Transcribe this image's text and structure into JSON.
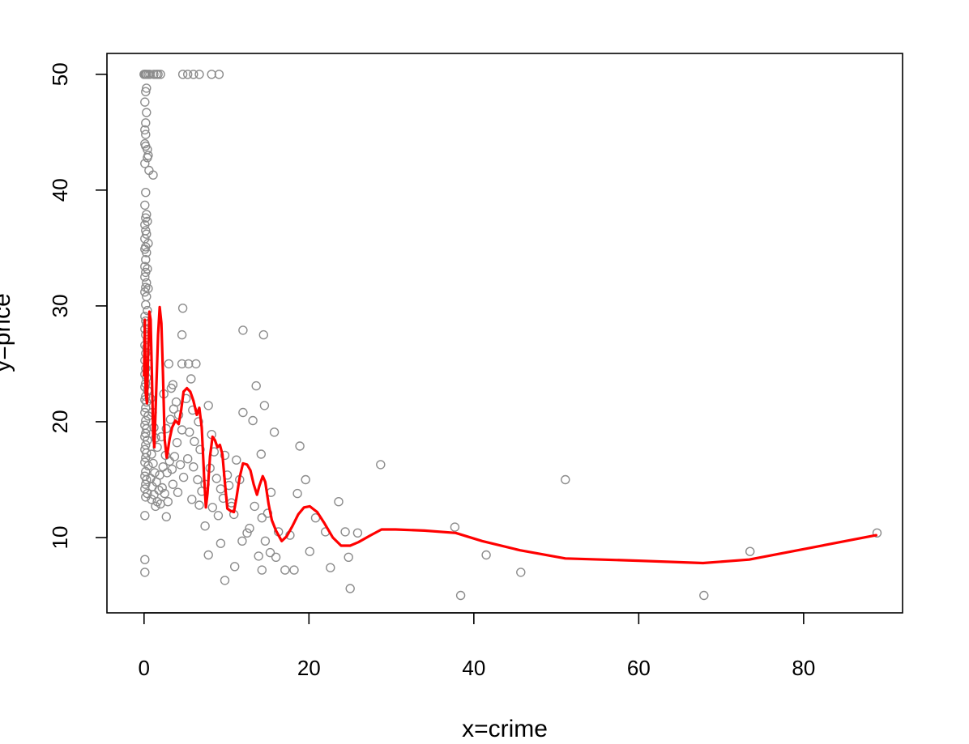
{
  "chart_data": {
    "type": "scatter",
    "xlabel": "x=crime",
    "ylabel": "y=price",
    "xlim": [
      -4.5,
      92
    ],
    "ylim": [
      3.5,
      51.8
    ],
    "x_ticks": [
      0,
      20,
      40,
      60,
      80
    ],
    "y_ticks": [
      10,
      20,
      30,
      40,
      50
    ],
    "grid": false,
    "colors": {
      "points": "#8c8c8c",
      "smooth_line": "#ff0000",
      "axes": "#000000"
    },
    "series": [
      {
        "kind": "points",
        "points": [
          [
            0.0,
            50.0
          ],
          [
            0.1,
            50.0
          ],
          [
            0.2,
            50.0
          ],
          [
            0.3,
            50.0
          ],
          [
            0.5,
            50.0
          ],
          [
            0.7,
            50.0
          ],
          [
            1.2,
            50.0
          ],
          [
            1.5,
            50.0
          ],
          [
            1.7,
            50.0
          ],
          [
            2.0,
            50.0
          ],
          [
            4.7,
            50.0
          ],
          [
            5.3,
            50.0
          ],
          [
            6.0,
            50.0
          ],
          [
            6.7,
            50.0
          ],
          [
            8.2,
            50.0
          ],
          [
            9.1,
            50.0
          ],
          [
            0.3,
            48.8
          ],
          [
            0.2,
            48.5
          ],
          [
            0.1,
            47.6
          ],
          [
            0.3,
            46.7
          ],
          [
            0.2,
            45.8
          ],
          [
            0.1,
            45.2
          ],
          [
            0.2,
            44.8
          ],
          [
            0.1,
            44.0
          ],
          [
            0.2,
            43.8
          ],
          [
            0.4,
            43.5
          ],
          [
            0.5,
            43.0
          ],
          [
            0.4,
            42.8
          ],
          [
            0.1,
            42.3
          ],
          [
            0.6,
            41.7
          ],
          [
            1.1,
            41.3
          ],
          [
            0.2,
            39.8
          ],
          [
            0.1,
            38.7
          ],
          [
            0.3,
            37.9
          ],
          [
            0.2,
            37.6
          ],
          [
            0.4,
            37.3
          ],
          [
            0.1,
            37.0
          ],
          [
            0.2,
            36.5
          ],
          [
            0.3,
            36.2
          ],
          [
            0.1,
            35.8
          ],
          [
            0.5,
            35.4
          ],
          [
            0.2,
            35.1
          ],
          [
            0.1,
            34.9
          ],
          [
            0.3,
            34.6
          ],
          [
            0.2,
            34.0
          ],
          [
            0.1,
            33.4
          ],
          [
            0.4,
            33.2
          ],
          [
            0.2,
            32.9
          ],
          [
            0.1,
            32.5
          ],
          [
            0.3,
            32.0
          ],
          [
            0.2,
            31.6
          ],
          [
            0.5,
            31.5
          ],
          [
            0.1,
            31.2
          ],
          [
            0.3,
            30.8
          ],
          [
            0.2,
            30.1
          ],
          [
            0.4,
            29.6
          ],
          [
            0.1,
            29.1
          ],
          [
            0.2,
            28.7
          ],
          [
            0.3,
            28.4
          ],
          [
            0.1,
            28.0
          ],
          [
            0.2,
            27.5
          ],
          [
            0.4,
            27.1
          ],
          [
            0.1,
            26.6
          ],
          [
            0.3,
            26.4
          ],
          [
            0.2,
            25.9
          ],
          [
            0.1,
            25.3
          ],
          [
            0.5,
            25.0
          ],
          [
            0.2,
            24.6
          ],
          [
            0.1,
            24.1
          ],
          [
            0.3,
            23.8
          ],
          [
            0.2,
            23.3
          ],
          [
            0.1,
            23.0
          ],
          [
            0.4,
            22.7
          ],
          [
            0.2,
            22.2
          ],
          [
            0.1,
            21.9
          ],
          [
            0.3,
            21.7
          ],
          [
            0.2,
            21.2
          ],
          [
            0.1,
            20.8
          ],
          [
            0.5,
            20.5
          ],
          [
            0.2,
            20.1
          ],
          [
            0.1,
            19.7
          ],
          [
            0.3,
            19.4
          ],
          [
            0.2,
            19.0
          ],
          [
            0.1,
            18.7
          ],
          [
            0.4,
            18.4
          ],
          [
            0.2,
            18.0
          ],
          [
            0.1,
            17.6
          ],
          [
            0.3,
            17.3
          ],
          [
            0.2,
            16.9
          ],
          [
            0.1,
            16.5
          ],
          [
            0.5,
            16.2
          ],
          [
            0.2,
            15.7
          ],
          [
            0.1,
            15.3
          ],
          [
            0.3,
            15.0
          ],
          [
            0.2,
            14.6
          ],
          [
            0.1,
            14.2
          ],
          [
            0.4,
            13.8
          ],
          [
            0.2,
            13.5
          ],
          [
            0.1,
            11.9
          ],
          [
            0.1,
            8.1
          ],
          [
            0.1,
            7.0
          ],
          [
            0.8,
            22.0
          ],
          [
            1.0,
            20.8
          ],
          [
            1.2,
            19.5
          ],
          [
            1.4,
            18.6
          ],
          [
            1.6,
            17.8
          ],
          [
            0.9,
            17.2
          ],
          [
            1.1,
            16.4
          ],
          [
            1.3,
            15.6
          ],
          [
            0.8,
            15.1
          ],
          [
            1.5,
            14.8
          ],
          [
            1.0,
            14.4
          ],
          [
            1.8,
            14.1
          ],
          [
            1.2,
            13.7
          ],
          [
            0.9,
            13.3
          ],
          [
            1.6,
            13.1
          ],
          [
            2.0,
            12.9
          ],
          [
            1.4,
            12.7
          ],
          [
            2.2,
            14.3
          ],
          [
            2.5,
            13.8
          ],
          [
            1.9,
            15.4
          ],
          [
            2.3,
            16.1
          ],
          [
            2.8,
            15.6
          ],
          [
            2.6,
            17.1
          ],
          [
            3.1,
            16.6
          ],
          [
            3.4,
            15.9
          ],
          [
            2.1,
            18.7
          ],
          [
            2.7,
            19.4
          ],
          [
            3.2,
            20.2
          ],
          [
            3.6,
            21.1
          ],
          [
            2.4,
            22.4
          ],
          [
            3.3,
            22.9
          ],
          [
            3.9,
            21.7
          ],
          [
            4.2,
            20.6
          ],
          [
            4.6,
            19.3
          ],
          [
            4.0,
            18.2
          ],
          [
            3.7,
            17.0
          ],
          [
            4.4,
            16.3
          ],
          [
            4.8,
            15.2
          ],
          [
            3.5,
            14.6
          ],
          [
            4.1,
            13.9
          ],
          [
            2.9,
            13.1
          ],
          [
            2.7,
            11.8
          ],
          [
            3.0,
            25.0
          ],
          [
            3.5,
            23.2
          ],
          [
            4.6,
            25.0
          ],
          [
            4.7,
            29.8
          ],
          [
            4.6,
            27.5
          ],
          [
            5.4,
            25.0
          ],
          [
            5.7,
            23.7
          ],
          [
            6.3,
            25.0
          ],
          [
            5.1,
            22.0
          ],
          [
            5.9,
            21.0
          ],
          [
            6.6,
            20.0
          ],
          [
            5.5,
            19.1
          ],
          [
            6.1,
            18.3
          ],
          [
            6.8,
            17.6
          ],
          [
            5.3,
            16.8
          ],
          [
            6.0,
            16.1
          ],
          [
            6.5,
            15.0
          ],
          [
            7.0,
            14.0
          ],
          [
            5.8,
            13.3
          ],
          [
            6.7,
            12.8
          ],
          [
            7.4,
            14.6
          ],
          [
            7.8,
            21.4
          ],
          [
            8.2,
            18.9
          ],
          [
            8.5,
            17.4
          ],
          [
            8.0,
            16.0
          ],
          [
            8.8,
            15.1
          ],
          [
            9.3,
            14.2
          ],
          [
            9.6,
            13.4
          ],
          [
            8.3,
            12.6
          ],
          [
            9.0,
            11.9
          ],
          [
            7.4,
            11.0
          ],
          [
            7.8,
            8.5
          ],
          [
            9.3,
            9.5
          ],
          [
            9.8,
            6.3
          ],
          [
            9.8,
            17.1
          ],
          [
            10.1,
            15.4
          ],
          [
            10.3,
            14.5
          ],
          [
            10.6,
            13.0
          ],
          [
            10.9,
            12.0
          ],
          [
            11.2,
            16.7
          ],
          [
            11.6,
            15.0
          ],
          [
            10.6,
            12.7
          ],
          [
            11.0,
            7.5
          ],
          [
            11.9,
            9.7
          ],
          [
            12.0,
            27.9
          ],
          [
            12.0,
            20.8
          ],
          [
            12.5,
            10.4
          ],
          [
            12.8,
            10.8
          ],
          [
            13.2,
            20.1
          ],
          [
            13.4,
            12.7
          ],
          [
            13.6,
            23.1
          ],
          [
            13.9,
            8.4
          ],
          [
            14.2,
            17.2
          ],
          [
            14.3,
            11.7
          ],
          [
            14.5,
            27.5
          ],
          [
            14.6,
            21.4
          ],
          [
            14.3,
            7.2
          ],
          [
            14.7,
            9.7
          ],
          [
            15.0,
            12.1
          ],
          [
            15.3,
            8.7
          ],
          [
            15.4,
            13.9
          ],
          [
            15.8,
            19.1
          ],
          [
            16.0,
            8.3
          ],
          [
            16.3,
            10.5
          ],
          [
            17.1,
            7.2
          ],
          [
            17.7,
            10.2
          ],
          [
            18.2,
            7.2
          ],
          [
            18.6,
            13.8
          ],
          [
            18.9,
            17.9
          ],
          [
            19.6,
            15.0
          ],
          [
            20.1,
            8.8
          ],
          [
            20.8,
            11.7
          ],
          [
            22.0,
            10.5
          ],
          [
            22.6,
            7.4
          ],
          [
            23.6,
            13.1
          ],
          [
            24.4,
            10.5
          ],
          [
            24.8,
            8.3
          ],
          [
            25.0,
            5.6
          ],
          [
            25.9,
            10.4
          ],
          [
            28.7,
            16.3
          ],
          [
            37.7,
            10.9
          ],
          [
            38.4,
            5.0
          ],
          [
            41.5,
            8.5
          ],
          [
            45.7,
            7.0
          ],
          [
            51.1,
            15.0
          ],
          [
            67.9,
            5.0
          ],
          [
            73.5,
            8.8
          ],
          [
            88.9,
            10.4
          ]
        ]
      },
      {
        "kind": "smooth_line",
        "points": [
          [
            0.0,
            24.0
          ],
          [
            0.1,
            28.8
          ],
          [
            0.2,
            22.5
          ],
          [
            0.35,
            21.6
          ],
          [
            0.5,
            26.0
          ],
          [
            0.65,
            29.5
          ],
          [
            0.8,
            28.8
          ],
          [
            0.95,
            24.0
          ],
          [
            1.1,
            19.0
          ],
          [
            1.25,
            17.8
          ],
          [
            1.45,
            22.0
          ],
          [
            1.7,
            27.5
          ],
          [
            1.9,
            29.9
          ],
          [
            2.1,
            28.5
          ],
          [
            2.3,
            24.0
          ],
          [
            2.5,
            18.5
          ],
          [
            2.75,
            16.9
          ],
          [
            3.1,
            18.5
          ],
          [
            3.4,
            19.5
          ],
          [
            3.8,
            20.1
          ],
          [
            4.2,
            19.8
          ],
          [
            4.5,
            21.0
          ],
          [
            4.8,
            22.6
          ],
          [
            5.2,
            22.9
          ],
          [
            5.6,
            22.6
          ],
          [
            6.0,
            21.8
          ],
          [
            6.4,
            20.6
          ],
          [
            6.7,
            21.2
          ],
          [
            7.0,
            19.5
          ],
          [
            7.3,
            15.0
          ],
          [
            7.5,
            12.6
          ],
          [
            7.7,
            13.8
          ],
          [
            8.0,
            17.0
          ],
          [
            8.3,
            18.7
          ],
          [
            8.6,
            18.4
          ],
          [
            8.9,
            17.8
          ],
          [
            9.2,
            18.0
          ],
          [
            9.5,
            17.2
          ],
          [
            9.8,
            14.8
          ],
          [
            10.1,
            12.5
          ],
          [
            10.5,
            12.3
          ],
          [
            10.9,
            12.2
          ],
          [
            11.2,
            13.4
          ],
          [
            11.6,
            15.2
          ],
          [
            12.0,
            16.4
          ],
          [
            12.5,
            16.3
          ],
          [
            12.9,
            15.8
          ],
          [
            13.3,
            14.6
          ],
          [
            13.7,
            13.7
          ],
          [
            14.0,
            14.5
          ],
          [
            14.4,
            15.3
          ],
          [
            14.7,
            14.8
          ],
          [
            15.1,
            12.9
          ],
          [
            15.5,
            11.5
          ],
          [
            16.0,
            10.6
          ],
          [
            16.7,
            9.7
          ],
          [
            17.3,
            10.1
          ],
          [
            18.0,
            11.0
          ],
          [
            18.7,
            12.0
          ],
          [
            19.4,
            12.6
          ],
          [
            20.1,
            12.7
          ],
          [
            21.0,
            12.2
          ],
          [
            21.9,
            11.2
          ],
          [
            22.9,
            10.0
          ],
          [
            23.9,
            9.3
          ],
          [
            25.0,
            9.3
          ],
          [
            26.0,
            9.6
          ],
          [
            27.5,
            10.2
          ],
          [
            28.8,
            10.7
          ],
          [
            30.5,
            10.7
          ],
          [
            34.0,
            10.6
          ],
          [
            37.8,
            10.4
          ],
          [
            41.0,
            9.7
          ],
          [
            45.6,
            8.9
          ],
          [
            51.1,
            8.2
          ],
          [
            60.0,
            8.0
          ],
          [
            67.8,
            7.8
          ],
          [
            73.4,
            8.1
          ],
          [
            80.0,
            9.0
          ],
          [
            88.8,
            10.2
          ]
        ]
      }
    ]
  }
}
